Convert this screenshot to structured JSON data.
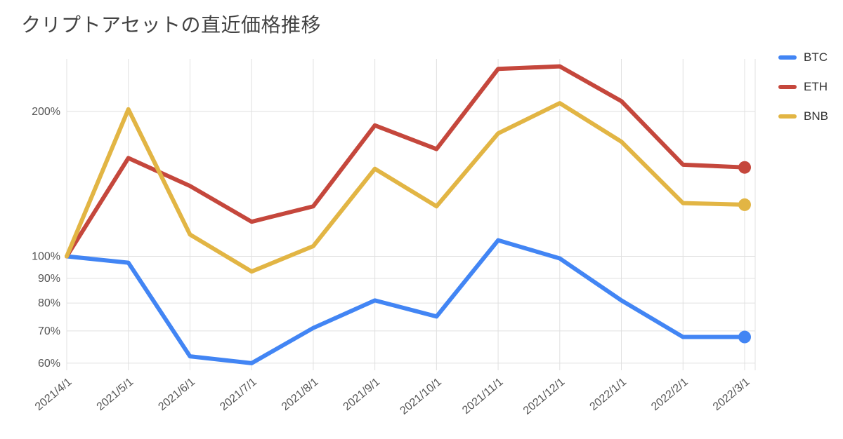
{
  "title": "クリプトアセットの直近価格推移",
  "chart_data": {
    "type": "line",
    "title": "クリプトアセットの直近価格推移",
    "categories": [
      "2021/4/1",
      "2021/5/1",
      "2021/6/1",
      "2021/7/1",
      "2021/8/1",
      "2021/9/1",
      "2021/10/1",
      "2021/11/1",
      "2021/12/1",
      "2022/1/1",
      "2022/2/1",
      "2022/3/1"
    ],
    "series": [
      {
        "name": "BTC",
        "color": "#4285f4",
        "values": [
          100,
          97,
          62,
          60,
          71,
          81,
          75,
          108,
          99,
          81,
          68,
          68
        ]
      },
      {
        "name": "ETH",
        "color": "#c5473c",
        "values": [
          100,
          160,
          140,
          118,
          127,
          187,
          167,
          245,
          248,
          210,
          155,
          153
        ]
      },
      {
        "name": "BNB",
        "color": "#e2b544",
        "values": [
          100,
          202,
          111,
          93,
          105,
          152,
          127,
          180,
          208,
          173,
          129,
          128
        ]
      }
    ],
    "y_axis": {
      "scale": "log",
      "ticks": [
        60,
        70,
        80,
        90,
        100,
        200
      ],
      "tick_suffix": "%",
      "domain": [
        58,
        257
      ]
    },
    "x_axis": {
      "label_rotation": -40
    },
    "legend_position": "right",
    "grid": true,
    "end_point_markers": true,
    "gridline_color": "#e0e0e0",
    "line_width": 6,
    "marker_radius": 9
  }
}
